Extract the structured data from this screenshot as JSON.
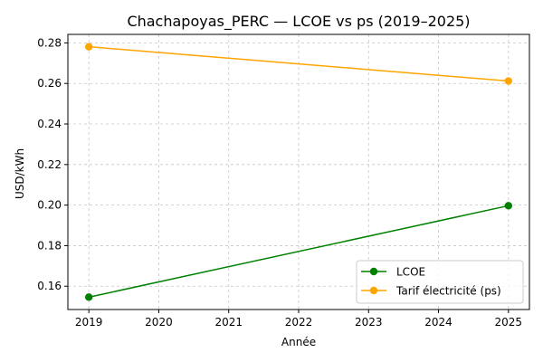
{
  "chart_data": {
    "type": "line",
    "title": "Chachapoyas_PERC — LCOE vs ps (2019–2025)",
    "xlabel": "Année",
    "ylabel": "USD/kWh",
    "x": [
      2019,
      2025
    ],
    "series": [
      {
        "name": "LCOE",
        "values": [
          0.1546,
          0.1997
        ],
        "color": "#008000",
        "marker": "circle"
      },
      {
        "name": "Tarif électricité (ps)",
        "values": [
          0.2781,
          0.2612
        ],
        "color": "#FFA500",
        "marker": "circle"
      }
    ],
    "xlim": [
      2018.7,
      2025.3
    ],
    "ylim": [
      0.1485,
      0.2842
    ],
    "xticks": [
      "2019",
      "2020",
      "2021",
      "2022",
      "2023",
      "2024",
      "2025"
    ],
    "yticks": [
      "0.16",
      "0.18",
      "0.20",
      "0.22",
      "0.24",
      "0.26",
      "0.28"
    ],
    "grid": true,
    "grid_style": "dashed",
    "legend_position": "lower right"
  }
}
